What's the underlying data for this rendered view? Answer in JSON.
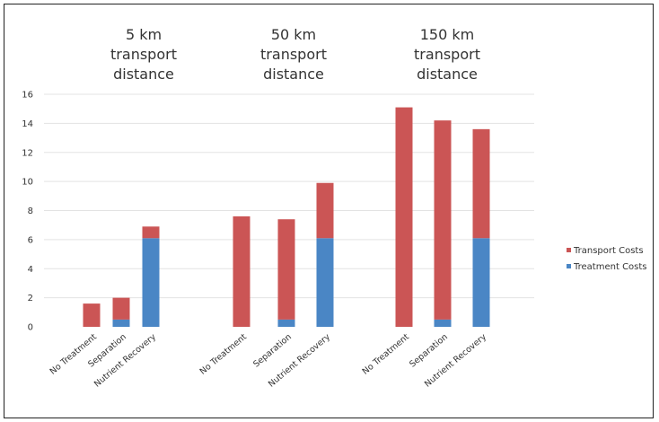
{
  "chart_data": {
    "type": "bar",
    "stacked": true,
    "title": "",
    "xlabel": "",
    "ylabel": "",
    "ylim": [
      0,
      16
    ],
    "yticks": [
      0,
      2,
      4,
      6,
      8,
      10,
      12,
      14,
      16
    ],
    "grid": true,
    "legend_position": "right",
    "groups": [
      "5 km transport distance",
      "50 km transport distance",
      "150 km transport distance"
    ],
    "group_title_lines": [
      [
        "5 km",
        "transport",
        "distance"
      ],
      [
        "50 km",
        "transport",
        "distance"
      ],
      [
        "150 km",
        "transport",
        "distance"
      ]
    ],
    "categories": [
      "No Treatment",
      "Separation",
      "Nutrient Recovery",
      "No Treatment",
      "Separation",
      "Nutrient Recovery",
      "No Treatment",
      "Separation",
      "Nutrient Recovery"
    ],
    "series": [
      {
        "name": "Treatment Costs",
        "color": "#4a86c5",
        "values": [
          0,
          0.5,
          6.1,
          0,
          0.5,
          6.1,
          0,
          0.5,
          6.1
        ]
      },
      {
        "name": "Transport Costs",
        "color": "#cb5555",
        "values": [
          1.6,
          1.5,
          0.8,
          7.6,
          6.9,
          3.8,
          15.1,
          13.7,
          7.5
        ]
      }
    ],
    "legend_order": [
      "Transport Costs",
      "Treatment Costs"
    ]
  }
}
